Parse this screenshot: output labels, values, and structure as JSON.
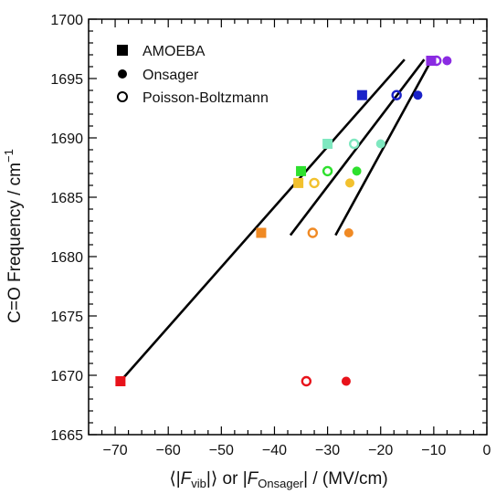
{
  "chart_data": {
    "type": "scatter",
    "title": "",
    "xlabel": "⟨|F_vib|⟩ or |F_Onsager| / (MV/cm)",
    "xlabel_parts": {
      "open_bracket": "⟨",
      "bar_left_1": "|",
      "f1": "F",
      "sub1": "vib",
      "bar_right_1": "|",
      "close_bracket": "⟩",
      "or": " or ",
      "bar_left_2": "|",
      "f2": "F",
      "sub2": "Onsager",
      "bar_right_2": "|",
      "units": " / (MV/cm)"
    },
    "ylabel": "C=O Frequency / cm",
    "ylabel_sup": "−1",
    "xlim": [
      -75,
      0
    ],
    "ylim": [
      1665,
      1700
    ],
    "x_ticks": [
      -70,
      -60,
      -50,
      -40,
      -30,
      -20,
      -10,
      0
    ],
    "x_tick_labels": [
      "−70",
      "−60",
      "−50",
      "−40",
      "−30",
      "−20",
      "−10",
      "0"
    ],
    "y_ticks": [
      1665,
      1670,
      1675,
      1680,
      1685,
      1690,
      1695,
      1700
    ],
    "y_tick_labels": [
      "1665",
      "1670",
      "1675",
      "1680",
      "1685",
      "1690",
      "1695",
      "1700"
    ],
    "grid": false,
    "legend_position": "top-left",
    "legend": [
      {
        "label": "AMOEBA",
        "marker": "square"
      },
      {
        "label": "Onsager",
        "marker": "filled-circle"
      },
      {
        "label": "Poisson-Boltzmann",
        "marker": "open-circle"
      }
    ],
    "series": [
      {
        "name": "AMOEBA",
        "marker": "square",
        "points": [
          {
            "x": -69,
            "y": 1669.5,
            "color": "#e8121a"
          },
          {
            "x": -42.5,
            "y": 1682.0,
            "color": "#f08a24"
          },
          {
            "x": -35.5,
            "y": 1686.2,
            "color": "#f2c12e"
          },
          {
            "x": -35.0,
            "y": 1687.2,
            "color": "#2ee02e"
          },
          {
            "x": -30.0,
            "y": 1689.5,
            "color": "#7fe8c0"
          },
          {
            "x": -23.5,
            "y": 1693.6,
            "color": "#1a22c8"
          },
          {
            "x": -10.5,
            "y": 1696.5,
            "color": "#8a2be2"
          }
        ],
        "fit": {
          "x": [
            -69,
            -15.5
          ],
          "y": [
            1669.5,
            1696.6
          ]
        }
      },
      {
        "name": "Onsager",
        "marker": "filled-circle",
        "points": [
          {
            "x": -26.5,
            "y": 1669.5,
            "color": "#e8121a"
          },
          {
            "x": -26.0,
            "y": 1682.0,
            "color": "#f08a24"
          },
          {
            "x": -25.8,
            "y": 1686.2,
            "color": "#f2c12e"
          },
          {
            "x": -24.5,
            "y": 1687.2,
            "color": "#2ee02e"
          },
          {
            "x": -20.0,
            "y": 1689.5,
            "color": "#7fe8c0"
          },
          {
            "x": -13.0,
            "y": 1693.6,
            "color": "#1a22c8"
          },
          {
            "x": -7.5,
            "y": 1696.5,
            "color": "#8a2be2"
          }
        ],
        "fit": {
          "x": [
            -28.5,
            -10.5
          ],
          "y": [
            1681.8,
            1696.5
          ]
        }
      },
      {
        "name": "Poisson-Boltzmann",
        "marker": "open-circle",
        "points": [
          {
            "x": -34.0,
            "y": 1669.5,
            "color": "#e8121a"
          },
          {
            "x": -32.8,
            "y": 1682.0,
            "color": "#f08a24"
          },
          {
            "x": -32.5,
            "y": 1686.2,
            "color": "#f2c12e"
          },
          {
            "x": -30.0,
            "y": 1687.2,
            "color": "#2ee02e"
          },
          {
            "x": -25.0,
            "y": 1689.5,
            "color": "#7fe8c0"
          },
          {
            "x": -17.0,
            "y": 1693.6,
            "color": "#1a22c8"
          },
          {
            "x": -9.5,
            "y": 1696.5,
            "color": "#8a2be2"
          }
        ],
        "fit": {
          "x": [
            -37,
            -11.8
          ],
          "y": [
            1681.8,
            1696.6
          ]
        }
      }
    ]
  }
}
